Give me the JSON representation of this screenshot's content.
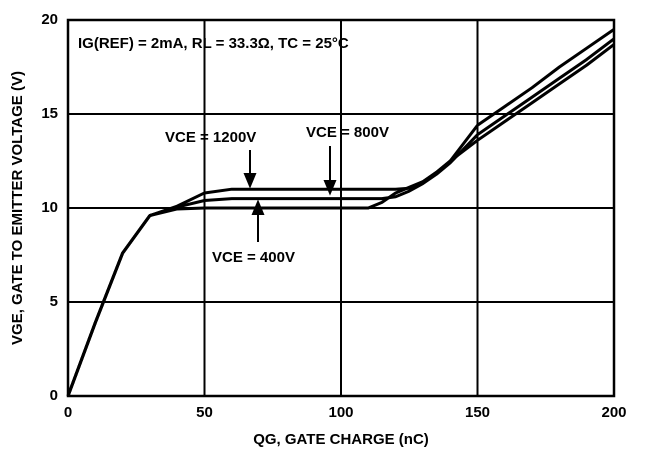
{
  "chart_data": {
    "type": "line",
    "annotation": "IG(REF) = 2mA, RL = 33.3Ω, TC = 25°C",
    "x_label": "QG, GATE CHARGE (nC)",
    "y_label": "VGE, GATE TO EMITTER VOLTAGE (V)",
    "x": [
      0,
      10,
      20,
      30,
      40,
      50,
      60,
      70,
      80,
      90,
      100,
      110,
      115,
      120,
      125,
      130,
      135,
      140,
      150,
      160,
      170,
      180,
      190,
      200
    ],
    "series": [
      {
        "name": "VCE = 1200V",
        "color": "#000000",
        "values": [
          0,
          3.9,
          7.6,
          9.6,
          10.1,
          10.8,
          11,
          11,
          11,
          11,
          11,
          11,
          11,
          11,
          11.05,
          11.4,
          11.9,
          12.5,
          14.4,
          15.4,
          16.4,
          17.5,
          18.5,
          19.5
        ]
      },
      {
        "name": "VCE = 800V",
        "color": "#000000",
        "values": [
          0,
          3.9,
          7.6,
          9.6,
          10.05,
          10.4,
          10.5,
          10.5,
          10.5,
          10.5,
          10.5,
          10.5,
          10.5,
          10.6,
          10.9,
          11.3,
          11.8,
          12.4,
          13.9,
          14.9,
          15.9,
          16.9,
          17.9,
          19.0
        ]
      },
      {
        "name": "VCE = 400V",
        "color": "#000000",
        "values": [
          0,
          3.9,
          7.6,
          9.6,
          9.95,
          10,
          10,
          10,
          10,
          10,
          10,
          10,
          10.3,
          10.8,
          11.1,
          11.4,
          11.9,
          12.5,
          13.6,
          14.6,
          15.6,
          16.6,
          17.6,
          18.7
        ]
      }
    ],
    "xlim": [
      0,
      200
    ],
    "xticks": [
      0,
      50,
      100,
      150,
      200
    ],
    "ylim": [
      0,
      20
    ],
    "yticks": [
      0,
      5,
      10,
      15,
      20
    ],
    "grid": true
  }
}
